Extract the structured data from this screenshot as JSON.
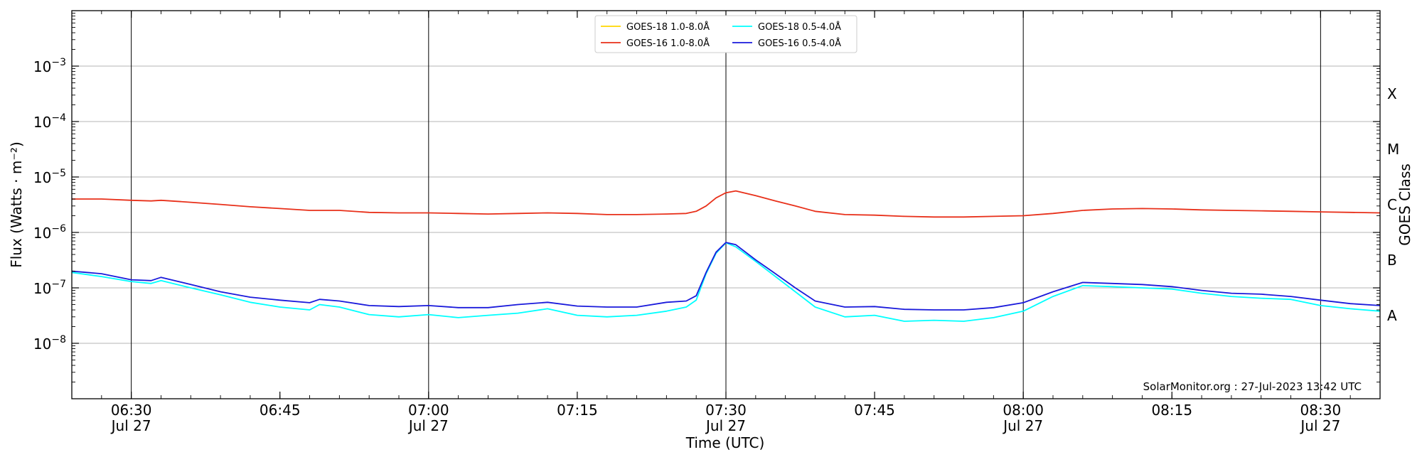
{
  "chart_data": {
    "type": "line",
    "xlabel": "Time (UTC)",
    "ylabel": "Flux (Watts · m⁻²)",
    "ylabel_right": "GOES Class",
    "y_scale": "log",
    "ylim": [
      1e-09,
      0.01
    ],
    "xlim": [
      "2023-07-27T06:24",
      "2023-07-27T08:36"
    ],
    "grid": "horizontal at decades",
    "legend_position": "top-center",
    "y_ticks": [
      {
        "value": 1e-08,
        "mant": "10",
        "exp": "−8"
      },
      {
        "value": 1e-07,
        "mant": "10",
        "exp": "−7"
      },
      {
        "value": 1e-06,
        "mant": "10",
        "exp": "−6"
      },
      {
        "value": 1e-05,
        "mant": "10",
        "exp": "−5"
      },
      {
        "value": 0.0001,
        "mant": "10",
        "exp": "−4"
      },
      {
        "value": 0.001,
        "mant": "10",
        "exp": "−3"
      }
    ],
    "x_ticks": [
      {
        "time": "2023-07-27T06:30",
        "label": "06:30",
        "sublabel": "Jul 27",
        "vline": true
      },
      {
        "time": "2023-07-27T06:45",
        "label": "06:45",
        "sublabel": "",
        "vline": false
      },
      {
        "time": "2023-07-27T07:00",
        "label": "07:00",
        "sublabel": "Jul 27",
        "vline": true
      },
      {
        "time": "2023-07-27T07:15",
        "label": "07:15",
        "sublabel": "",
        "vline": false
      },
      {
        "time": "2023-07-27T07:30",
        "label": "07:30",
        "sublabel": "Jul 27",
        "vline": true
      },
      {
        "time": "2023-07-27T07:45",
        "label": "07:45",
        "sublabel": "",
        "vline": false
      },
      {
        "time": "2023-07-27T08:00",
        "label": "08:00",
        "sublabel": "Jul 27",
        "vline": true
      },
      {
        "time": "2023-07-27T08:15",
        "label": "08:15",
        "sublabel": "",
        "vline": false
      },
      {
        "time": "2023-07-27T08:30",
        "label": "08:30",
        "sublabel": "Jul 27",
        "vline": true
      }
    ],
    "goes_classes": [
      {
        "label": "A",
        "value": 3.16e-08
      },
      {
        "label": "B",
        "value": 3.16e-07
      },
      {
        "label": "C",
        "value": 3.16e-06
      },
      {
        "label": "M",
        "value": 3.16e-05
      },
      {
        "label": "X",
        "value": 0.000316
      }
    ],
    "x": [
      "2023-07-27T06:24",
      "2023-07-27T06:27",
      "2023-07-27T06:30",
      "2023-07-27T06:32",
      "2023-07-27T06:33",
      "2023-07-27T06:36",
      "2023-07-27T06:39",
      "2023-07-27T06:42",
      "2023-07-27T06:45",
      "2023-07-27T06:48",
      "2023-07-27T06:49",
      "2023-07-27T06:51",
      "2023-07-27T06:54",
      "2023-07-27T06:57",
      "2023-07-27T07:00",
      "2023-07-27T07:03",
      "2023-07-27T07:06",
      "2023-07-27T07:09",
      "2023-07-27T07:12",
      "2023-07-27T07:15",
      "2023-07-27T07:18",
      "2023-07-27T07:21",
      "2023-07-27T07:24",
      "2023-07-27T07:26",
      "2023-07-27T07:27",
      "2023-07-27T07:28",
      "2023-07-27T07:29",
      "2023-07-27T07:30",
      "2023-07-27T07:31",
      "2023-07-27T07:33",
      "2023-07-27T07:35",
      "2023-07-27T07:37",
      "2023-07-27T07:39",
      "2023-07-27T07:42",
      "2023-07-27T07:45",
      "2023-07-27T07:48",
      "2023-07-27T07:51",
      "2023-07-27T07:54",
      "2023-07-27T07:57",
      "2023-07-27T08:00",
      "2023-07-27T08:03",
      "2023-07-27T08:06",
      "2023-07-27T08:09",
      "2023-07-27T08:12",
      "2023-07-27T08:15",
      "2023-07-27T08:18",
      "2023-07-27T08:21",
      "2023-07-27T08:24",
      "2023-07-27T08:27",
      "2023-07-27T08:30",
      "2023-07-27T08:33",
      "2023-07-27T08:36"
    ],
    "series": [
      {
        "name": "GOES-18 1.0-8.0Å",
        "color": "#ffd700",
        "values": null
      },
      {
        "name": "GOES-16 1.0-8.0Å",
        "color": "#e8301a",
        "values": [
          4e-06,
          4e-06,
          3.8e-06,
          3.7e-06,
          3.8e-06,
          3.5e-06,
          3.2e-06,
          2.9e-06,
          2.7e-06,
          2.5e-06,
          2.5e-06,
          2.5e-06,
          2.3e-06,
          2.25e-06,
          2.25e-06,
          2.2e-06,
          2.15e-06,
          2.2e-06,
          2.25e-06,
          2.2e-06,
          2.1e-06,
          2.1e-06,
          2.15e-06,
          2.2e-06,
          2.4e-06,
          3e-06,
          4.2e-06,
          5.2e-06,
          5.6e-06,
          4.6e-06,
          3.7e-06,
          3e-06,
          2.4e-06,
          2.1e-06,
          2.05e-06,
          1.95e-06,
          1.9e-06,
          1.9e-06,
          1.95e-06,
          2e-06,
          2.2e-06,
          2.5e-06,
          2.65e-06,
          2.7e-06,
          2.65e-06,
          2.55e-06,
          2.5e-06,
          2.45e-06,
          2.4e-06,
          2.35e-06,
          2.3e-06,
          2.25e-06
        ]
      },
      {
        "name": "GOES-18 0.5-4.0Å",
        "color": "#00ffff",
        "values": [
          1.9e-07,
          1.6e-07,
          1.3e-07,
          1.2e-07,
          1.35e-07,
          1e-07,
          7.5e-08,
          5.5e-08,
          4.5e-08,
          4e-08,
          5e-08,
          4.5e-08,
          3.3e-08,
          3e-08,
          3.3e-08,
          2.9e-08,
          3.2e-08,
          3.5e-08,
          4.2e-08,
          3.2e-08,
          3e-08,
          3.2e-08,
          3.8e-08,
          4.5e-08,
          6e-08,
          1.8e-07,
          4.2e-07,
          6.5e-07,
          5.5e-07,
          3e-07,
          1.6e-07,
          8.5e-08,
          4.5e-08,
          3e-08,
          3.2e-08,
          2.5e-08,
          2.6e-08,
          2.5e-08,
          2.9e-08,
          3.8e-08,
          7e-08,
          1.1e-07,
          1.05e-07,
          1e-07,
          9.5e-08,
          8e-08,
          7e-08,
          6.5e-08,
          6.2e-08,
          4.8e-08,
          4.2e-08,
          3.8e-08
        ]
      },
      {
        "name": "GOES-16 0.5-4.0Å",
        "color": "#1a1adb",
        "values": [
          2e-07,
          1.8e-07,
          1.4e-07,
          1.35e-07,
          1.55e-07,
          1.15e-07,
          8.5e-08,
          6.8e-08,
          6e-08,
          5.4e-08,
          6.2e-08,
          5.8e-08,
          4.8e-08,
          4.6e-08,
          4.8e-08,
          4.4e-08,
          4.4e-08,
          5e-08,
          5.5e-08,
          4.7e-08,
          4.5e-08,
          4.5e-08,
          5.5e-08,
          5.8e-08,
          7.2e-08,
          1.9e-07,
          4.4e-07,
          6.6e-07,
          6e-07,
          3.2e-07,
          1.8e-07,
          1e-07,
          5.8e-08,
          4.5e-08,
          4.6e-08,
          4.1e-08,
          4e-08,
          4e-08,
          4.4e-08,
          5.4e-08,
          8.5e-08,
          1.25e-07,
          1.2e-07,
          1.15e-07,
          1.05e-07,
          9e-08,
          8e-08,
          7.7e-08,
          7e-08,
          6e-08,
          5.2e-08,
          4.8e-08
        ]
      }
    ],
    "annotation": "SolarMonitor.org : 27-Jul-2023 13:42 UTC"
  }
}
